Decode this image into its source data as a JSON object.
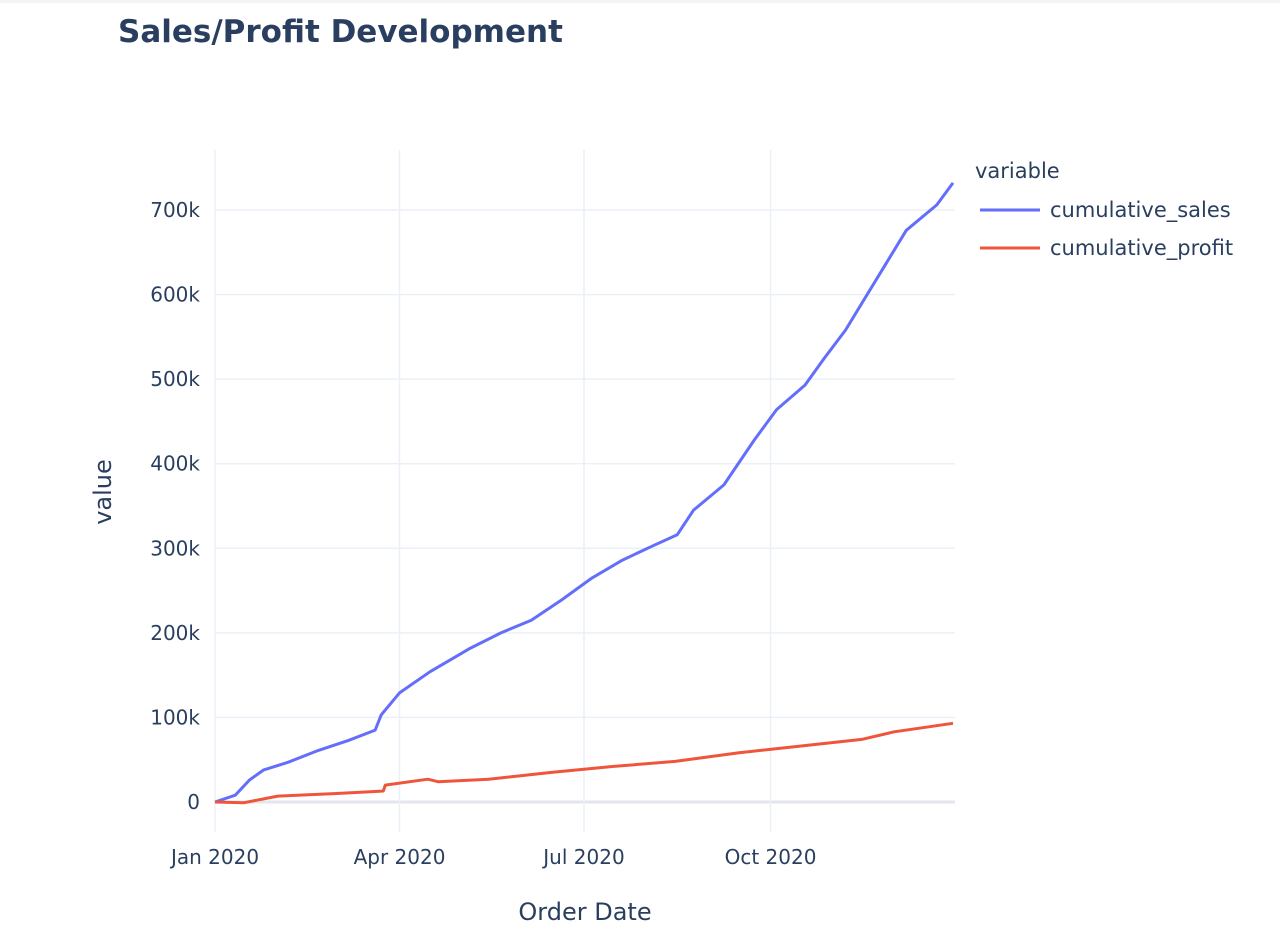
{
  "chart_data": {
    "type": "line",
    "title": "Sales/Profit Development",
    "xlabel": "Order Date",
    "ylabel": "value",
    "x_ticks": [
      "Jan 2020",
      "Apr 2020",
      "Jul 2020",
      "Oct 2020"
    ],
    "y_ticks": [
      "0",
      "100k",
      "200k",
      "300k",
      "400k",
      "500k",
      "600k",
      "700k"
    ],
    "xlim": [
      "2020-01-01",
      "2020-12-31"
    ],
    "ylim": [
      -20000,
      760000
    ],
    "grid": true,
    "legend_title": "variable",
    "legend_position": "right",
    "series": [
      {
        "name": "cumulative_sales",
        "color": "#636efa",
        "points": [
          [
            "2020-01-01",
            0
          ],
          [
            "2020-01-11",
            8000
          ],
          [
            "2020-01-18",
            26000
          ],
          [
            "2020-01-25",
            38000
          ],
          [
            "2020-02-06",
            47000
          ],
          [
            "2020-02-21",
            61000
          ],
          [
            "2020-03-07",
            73000
          ],
          [
            "2020-03-20",
            85000
          ],
          [
            "2020-03-23",
            103000
          ],
          [
            "2020-04-01",
            129000
          ],
          [
            "2020-04-16",
            154000
          ],
          [
            "2020-05-06",
            182000
          ],
          [
            "2020-05-21",
            200000
          ],
          [
            "2020-06-05",
            215000
          ],
          [
            "2020-06-20",
            239000
          ],
          [
            "2020-07-05",
            265000
          ],
          [
            "2020-07-20",
            286000
          ],
          [
            "2020-08-04",
            303000
          ],
          [
            "2020-08-16",
            316000
          ],
          [
            "2020-08-24",
            345000
          ],
          [
            "2020-09-08",
            375000
          ],
          [
            "2020-09-23",
            428000
          ],
          [
            "2020-10-04",
            464000
          ],
          [
            "2020-10-18",
            493000
          ],
          [
            "2020-10-27",
            523000
          ],
          [
            "2020-11-07",
            558000
          ],
          [
            "2020-11-22",
            617000
          ],
          [
            "2020-12-07",
            676000
          ],
          [
            "2020-12-22",
            706000
          ],
          [
            "2020-12-30",
            732000
          ]
        ]
      },
      {
        "name": "cumulative_profit",
        "color": "#ef553b",
        "points": [
          [
            "2020-01-01",
            0
          ],
          [
            "2020-01-15",
            -1000
          ],
          [
            "2020-02-01",
            7000
          ],
          [
            "2020-03-01",
            10000
          ],
          [
            "2020-03-24",
            13000
          ],
          [
            "2020-03-25",
            20000
          ],
          [
            "2020-04-15",
            27000
          ],
          [
            "2020-04-20",
            24000
          ],
          [
            "2020-05-15",
            27000
          ],
          [
            "2020-06-15",
            35000
          ],
          [
            "2020-07-15",
            42000
          ],
          [
            "2020-08-15",
            48000
          ],
          [
            "2020-09-15",
            58000
          ],
          [
            "2020-10-15",
            66000
          ],
          [
            "2020-11-15",
            74000
          ],
          [
            "2020-12-01",
            83000
          ],
          [
            "2020-12-30",
            93000
          ]
        ]
      }
    ]
  }
}
